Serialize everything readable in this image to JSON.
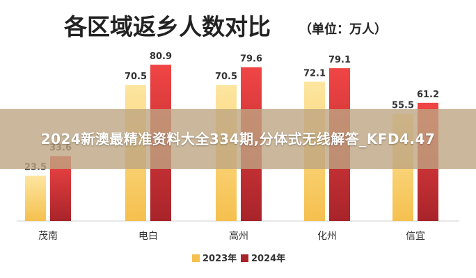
{
  "chart_data": {
    "type": "bar",
    "title": "各区域返乡人数对比",
    "unit_note": "（单位：万人）",
    "categories": [
      "茂南",
      "电白",
      "高州",
      "化州",
      "信宜"
    ],
    "series": [
      {
        "name": "2023年",
        "values": [
          23.5,
          70.5,
          70.5,
          72.1,
          55.5
        ],
        "color_top": "#FDE6A1",
        "color_bottom": "#F5C04E"
      },
      {
        "name": "2024年",
        "values": [
          33.6,
          80.9,
          79.6,
          79.1,
          61.2
        ],
        "color_top": "#F04545",
        "color_bottom": "#A8242A"
      }
    ],
    "value_labels": [
      [
        "23.5",
        "70.5",
        "70.5",
        "72.1",
        "55.5"
      ],
      [
        "33.6",
        "80.9",
        "79.6",
        "79.1",
        "61.2"
      ]
    ],
    "ylim": [
      0,
      90
    ],
    "grid": false,
    "legend": "bottom-center"
  },
  "overlay": {
    "text": "2024新澳最精准资料大全334期,分体式无线解答_KFD4.47"
  }
}
